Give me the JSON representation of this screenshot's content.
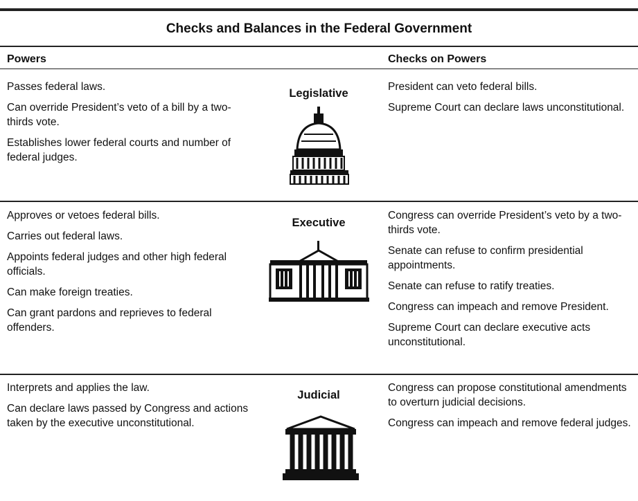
{
  "table": {
    "title": "Checks and Balances in the Federal Government",
    "columns": [
      "Powers",
      "Checks on Powers"
    ],
    "rows": [
      {
        "branch": "Legislative",
        "powers": [
          "Passes federal laws.",
          "Can override President’s veto of a bill by a two-thirds vote.",
          "Establishes lower federal courts and number of federal judges."
        ],
        "checks": [
          "President can veto federal bills.",
          "Supreme Court can declare laws unconstitutional."
        ]
      },
      {
        "branch": "Executive",
        "powers": [
          "Approves or vetoes federal bills.",
          "Carries out federal laws.",
          "Appoints federal judges and other high federal officials.",
          "Can make foreign treaties.",
          "Can grant pardons and reprieves to federal offenders."
        ],
        "checks": [
          "Congress can override President’s veto by a two-thirds vote.",
          "Senate can refuse to confirm presidential appointments.",
          "Senate can refuse to ratify treaties.",
          "Congress can impeach and remove President.",
          "Supreme Court can declare executive acts unconstitutional."
        ]
      },
      {
        "branch": "Judicial",
        "powers": [
          "Interprets and applies the law.",
          "Can declare laws passed by Congress and actions taken by the executive unconstitutional."
        ],
        "checks": [
          "Congress can propose constitutional amendments to overturn judicial decisions.",
          "Congress can impeach and remove federal judges."
        ]
      }
    ]
  }
}
